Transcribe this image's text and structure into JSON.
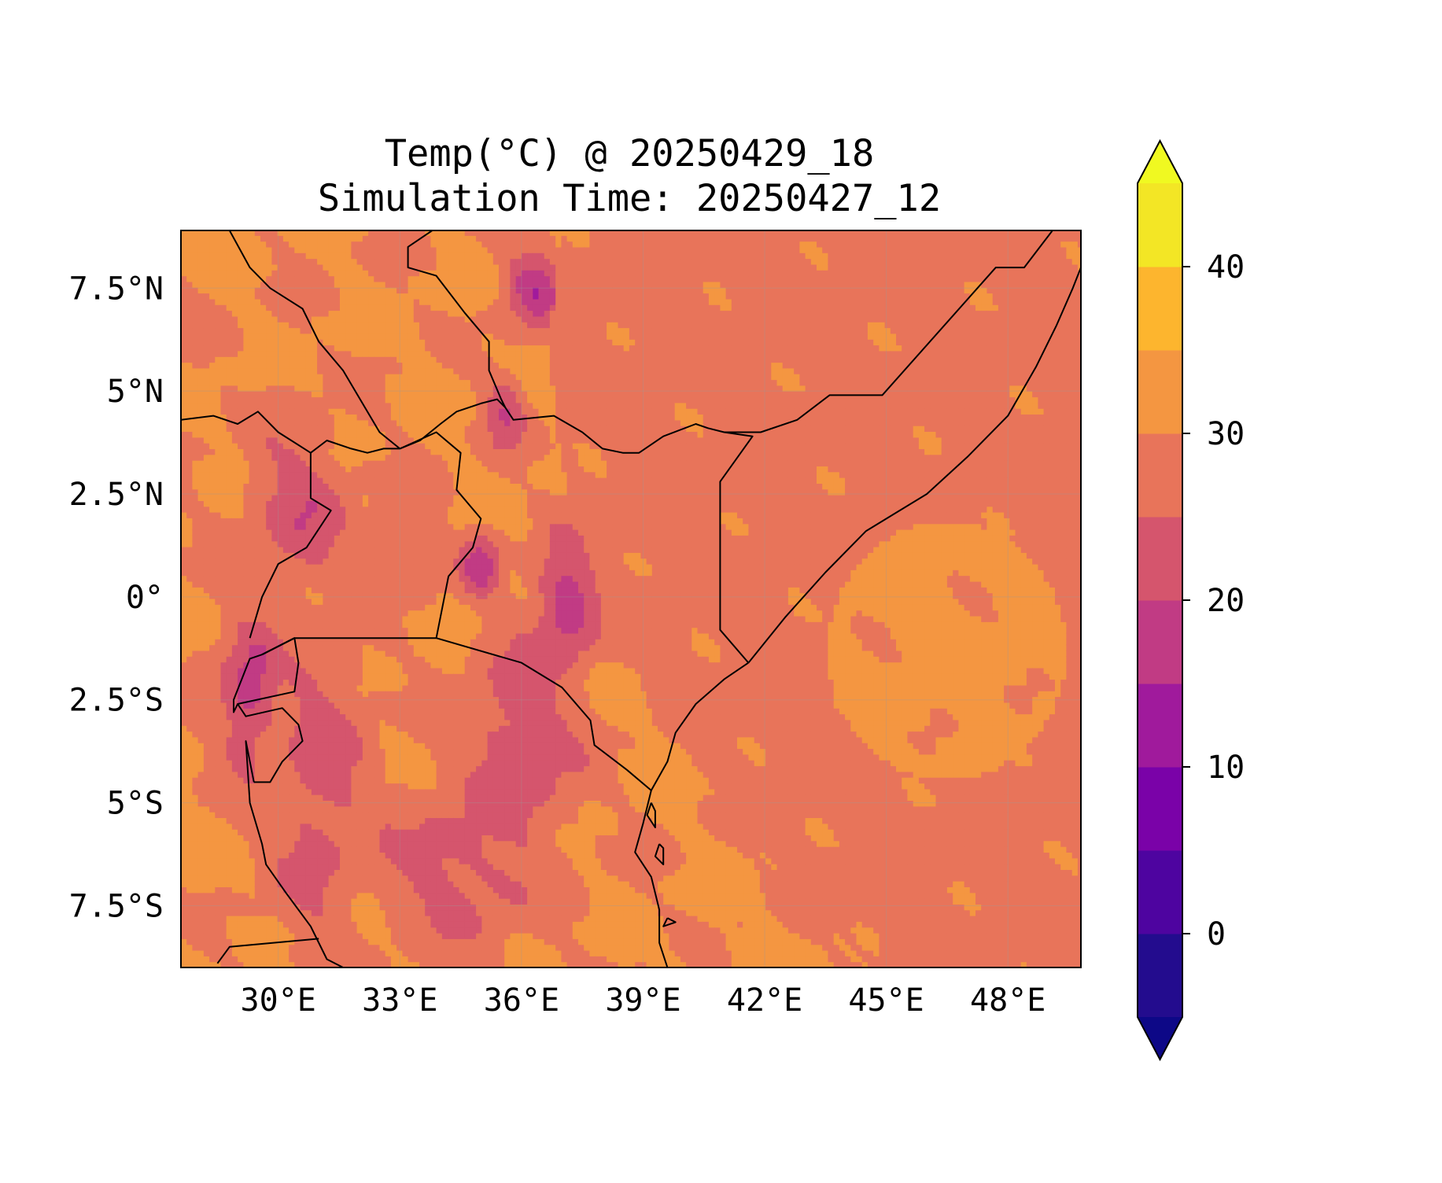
{
  "title": {
    "line1": "Temp(°C) @ 20250429_18",
    "line2": "Simulation Time: 20250427_12"
  },
  "map": {
    "lon_range": [
      27.6,
      49.8
    ],
    "lat_range": [
      -9.0,
      8.9
    ],
    "x_ticks": [
      {
        "lon": 30,
        "label": "30°E"
      },
      {
        "lon": 33,
        "label": "33°E"
      },
      {
        "lon": 36,
        "label": "36°E"
      },
      {
        "lon": 39,
        "label": "39°E"
      },
      {
        "lon": 42,
        "label": "42°E"
      },
      {
        "lon": 45,
        "label": "45°E"
      },
      {
        "lon": 48,
        "label": "48°E"
      }
    ],
    "y_ticks": [
      {
        "lat": 7.5,
        "label": "7.5°N"
      },
      {
        "lat": 5,
        "label": "5°N"
      },
      {
        "lat": 2.5,
        "label": "2.5°N"
      },
      {
        "lat": 0,
        "label": "0°"
      },
      {
        "lat": -2.5,
        "label": "2.5°S"
      },
      {
        "lat": -5,
        "label": "5°S"
      },
      {
        "lat": -7.5,
        "label": "7.5°S"
      }
    ],
    "gridlines": true,
    "colormap": "plasma",
    "background_fill": "#e8745a"
  },
  "colorbar": {
    "range": [
      -5,
      45
    ],
    "extend": "both",
    "levels": [
      -5,
      0,
      5,
      10,
      15,
      20,
      25,
      30,
      35,
      40,
      45
    ],
    "colors": [
      "#230c8e",
      "#4e04a0",
      "#7a02a8",
      "#a01a9c",
      "#c13b84",
      "#d5556d",
      "#e8745a",
      "#f49641",
      "#fdb52e",
      "#f3e625"
    ],
    "under_color": "#0d0887",
    "over_color": "#f0f921",
    "ticks": [
      {
        "value": 0,
        "label": "0"
      },
      {
        "value": 10,
        "label": "10"
      },
      {
        "value": 20,
        "label": "20"
      },
      {
        "value": 30,
        "label": "30"
      },
      {
        "value": 40,
        "label": "40"
      }
    ]
  }
}
